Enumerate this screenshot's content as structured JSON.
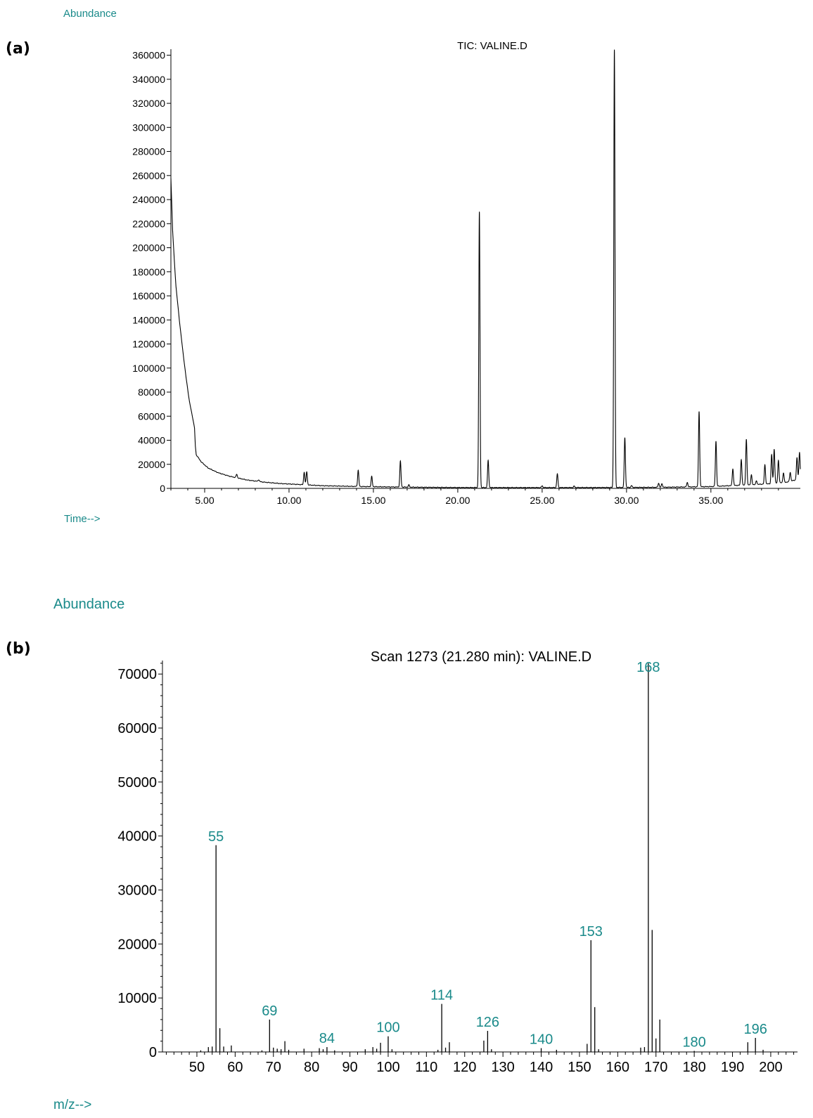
{
  "chart_data": [
    {
      "panel_label": "(a)",
      "type": "line",
      "title": "TIC: VALINE.D",
      "ylabel": "Abundance",
      "xlabel": "Time-->",
      "accent_color": "#1a8a8a",
      "xlim": [
        3.0,
        40.3
      ],
      "ylim": [
        0,
        365000
      ],
      "xticks": [
        5,
        10,
        15,
        20,
        25,
        30,
        35
      ],
      "xtick_labels": [
        "5.00",
        "10.00",
        "15.00",
        "20.00",
        "25.00",
        "30.00",
        "35.00"
      ],
      "yticks": [
        0,
        20000,
        40000,
        60000,
        80000,
        100000,
        120000,
        140000,
        160000,
        180000,
        200000,
        220000,
        240000,
        260000,
        280000,
        300000,
        320000,
        340000,
        360000
      ],
      "baseline": [
        [
          3.0,
          258000
        ],
        [
          3.1,
          215000
        ],
        [
          3.2,
          190000
        ],
        [
          3.3,
          168000
        ],
        [
          3.5,
          140000
        ],
        [
          3.7,
          115000
        ],
        [
          3.9,
          92000
        ],
        [
          4.1,
          72000
        ],
        [
          4.3,
          58000
        ],
        [
          4.4,
          50000
        ],
        [
          4.45,
          35000
        ],
        [
          4.5,
          28000
        ],
        [
          4.8,
          22000
        ],
        [
          5.2,
          17000
        ],
        [
          5.8,
          13000
        ],
        [
          6.5,
          10000
        ],
        [
          7.5,
          7000
        ],
        [
          8.5,
          5200
        ],
        [
          9.5,
          4000
        ],
        [
          10.5,
          3300
        ],
        [
          12.0,
          2200
        ],
        [
          14.0,
          1600
        ],
        [
          16.0,
          1200
        ],
        [
          18.0,
          900
        ],
        [
          20.0,
          700
        ],
        [
          24.0,
          650
        ],
        [
          28.0,
          700
        ],
        [
          32.0,
          900
        ],
        [
          35.0,
          1500
        ],
        [
          37.0,
          2800
        ],
        [
          38.5,
          3800
        ],
        [
          39.5,
          5200
        ],
        [
          40.3,
          8000
        ]
      ],
      "peaks": [
        {
          "rt": 6.9,
          "height": 3000
        },
        {
          "rt": 8.2,
          "height": 1500
        },
        {
          "rt": 10.9,
          "height": 10500
        },
        {
          "rt": 11.05,
          "height": 11000
        },
        {
          "rt": 14.1,
          "height": 13500
        },
        {
          "rt": 14.9,
          "height": 8500
        },
        {
          "rt": 16.6,
          "height": 21500
        },
        {
          "rt": 17.1,
          "height": 1800
        },
        {
          "rt": 21.28,
          "height": 229000
        },
        {
          "rt": 21.8,
          "height": 22500
        },
        {
          "rt": 25.0,
          "height": 1500
        },
        {
          "rt": 25.9,
          "height": 11500
        },
        {
          "rt": 26.9,
          "height": 1200
        },
        {
          "rt": 29.28,
          "height": 364000
        },
        {
          "rt": 29.9,
          "height": 41500
        },
        {
          "rt": 30.3,
          "height": 1500
        },
        {
          "rt": 31.9,
          "height": 3500
        },
        {
          "rt": 32.1,
          "height": 3000
        },
        {
          "rt": 33.6,
          "height": 3800
        },
        {
          "rt": 34.3,
          "height": 62500
        },
        {
          "rt": 35.3,
          "height": 37500
        },
        {
          "rt": 36.3,
          "height": 14000
        },
        {
          "rt": 36.8,
          "height": 21500
        },
        {
          "rt": 37.1,
          "height": 38000
        },
        {
          "rt": 37.4,
          "height": 8000
        },
        {
          "rt": 37.7,
          "height": 3000
        },
        {
          "rt": 38.2,
          "height": 16000
        },
        {
          "rt": 38.6,
          "height": 24000
        },
        {
          "rt": 38.75,
          "height": 28500
        },
        {
          "rt": 39.0,
          "height": 19000
        },
        {
          "rt": 39.3,
          "height": 8000
        },
        {
          "rt": 39.7,
          "height": 7500
        },
        {
          "rt": 40.1,
          "height": 18000
        },
        {
          "rt": 40.25,
          "height": 22000
        }
      ]
    },
    {
      "panel_label": "(b)",
      "type": "bar",
      "title": "Scan 1273 (21.280 min): VALINE.D",
      "ylabel": "Abundance",
      "xlabel": "m/z-->",
      "accent_color": "#1a8a8a",
      "xlim": [
        41,
        207
      ],
      "ylim": [
        0,
        72500
      ],
      "xticks": [
        50,
        60,
        70,
        80,
        90,
        100,
        110,
        120,
        130,
        140,
        150,
        160,
        170,
        180,
        190,
        200
      ],
      "yticks": [
        0,
        10000,
        20000,
        30000,
        40000,
        50000,
        60000,
        70000
      ],
      "peaks": [
        {
          "mz": 51,
          "abundance": 300
        },
        {
          "mz": 53,
          "abundance": 900
        },
        {
          "mz": 54,
          "abundance": 1000
        },
        {
          "mz": 55,
          "abundance": 38300,
          "label": "55"
        },
        {
          "mz": 56,
          "abundance": 4400
        },
        {
          "mz": 57,
          "abundance": 1000
        },
        {
          "mz": 59,
          "abundance": 1200
        },
        {
          "mz": 67,
          "abundance": 300
        },
        {
          "mz": 69,
          "abundance": 6000,
          "label": "69"
        },
        {
          "mz": 70,
          "abundance": 800
        },
        {
          "mz": 71,
          "abundance": 600
        },
        {
          "mz": 72,
          "abundance": 500
        },
        {
          "mz": 73,
          "abundance": 2000
        },
        {
          "mz": 74,
          "abundance": 400
        },
        {
          "mz": 78,
          "abundance": 600
        },
        {
          "mz": 82,
          "abundance": 700
        },
        {
          "mz": 83,
          "abundance": 500
        },
        {
          "mz": 84,
          "abundance": 900,
          "label": "84"
        },
        {
          "mz": 86,
          "abundance": 300
        },
        {
          "mz": 94,
          "abundance": 500
        },
        {
          "mz": 96,
          "abundance": 900
        },
        {
          "mz": 97,
          "abundance": 600
        },
        {
          "mz": 98,
          "abundance": 1700
        },
        {
          "mz": 100,
          "abundance": 2900,
          "label": "100"
        },
        {
          "mz": 101,
          "abundance": 500
        },
        {
          "mz": 113,
          "abundance": 400
        },
        {
          "mz": 114,
          "abundance": 8900,
          "label": "114"
        },
        {
          "mz": 115,
          "abundance": 800
        },
        {
          "mz": 116,
          "abundance": 1800
        },
        {
          "mz": 125,
          "abundance": 2100
        },
        {
          "mz": 126,
          "abundance": 3900,
          "label": "126"
        },
        {
          "mz": 127,
          "abundance": 500
        },
        {
          "mz": 140,
          "abundance": 700,
          "label": "140"
        },
        {
          "mz": 144,
          "abundance": 400
        },
        {
          "mz": 152,
          "abundance": 1500
        },
        {
          "mz": 153,
          "abundance": 20700,
          "label": "153"
        },
        {
          "mz": 154,
          "abundance": 8300
        },
        {
          "mz": 155,
          "abundance": 500
        },
        {
          "mz": 166,
          "abundance": 800
        },
        {
          "mz": 167,
          "abundance": 900
        },
        {
          "mz": 168,
          "abundance": 72000,
          "label": "168"
        },
        {
          "mz": 169,
          "abundance": 22600
        },
        {
          "mz": 170,
          "abundance": 2500
        },
        {
          "mz": 171,
          "abundance": 6000
        },
        {
          "mz": 180,
          "abundance": 200,
          "label": "180"
        },
        {
          "mz": 194,
          "abundance": 1800
        },
        {
          "mz": 196,
          "abundance": 2600,
          "label": "196"
        },
        {
          "mz": 198,
          "abundance": 400
        }
      ]
    }
  ]
}
